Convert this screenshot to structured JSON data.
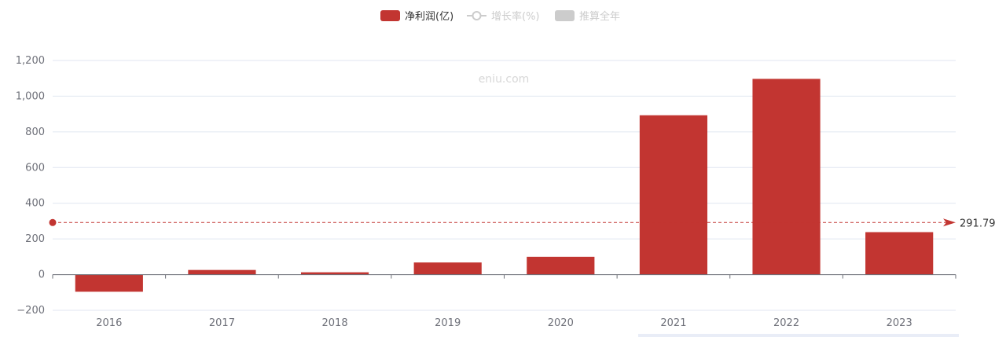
{
  "watermark": "eniu.com",
  "legend": [
    {
      "label": "净利润(亿)",
      "color": "#c23531",
      "shape": "rect",
      "active": true
    },
    {
      "label": "增长率(%)",
      "color": "#cccccc",
      "shape": "line-circle",
      "active": false
    },
    {
      "label": "推算全年",
      "color": "#cccccc",
      "shape": "rect",
      "active": false
    }
  ],
  "chart_data": {
    "type": "bar",
    "categories": [
      "2016",
      "2017",
      "2018",
      "2019",
      "2020",
      "2021",
      "2022",
      "2023"
    ],
    "series": [
      {
        "name": "净利润(亿)",
        "color": "#c23531",
        "values": [
          -96,
          26,
          13,
          68,
          100,
          893,
          1097,
          238
        ]
      }
    ],
    "ylim": [
      -200,
      1200
    ],
    "yticks": [
      -200,
      0,
      200,
      400,
      600,
      800,
      1000,
      1200
    ],
    "ytick_labels": [
      "−200",
      "0",
      "200",
      "400",
      "600",
      "800",
      "1,000",
      "1,200"
    ],
    "grid": true,
    "legend_position": "top-center",
    "mark_line": {
      "value": 291.79,
      "label": "291.79",
      "color": "#c23531",
      "style": "dashed"
    }
  }
}
